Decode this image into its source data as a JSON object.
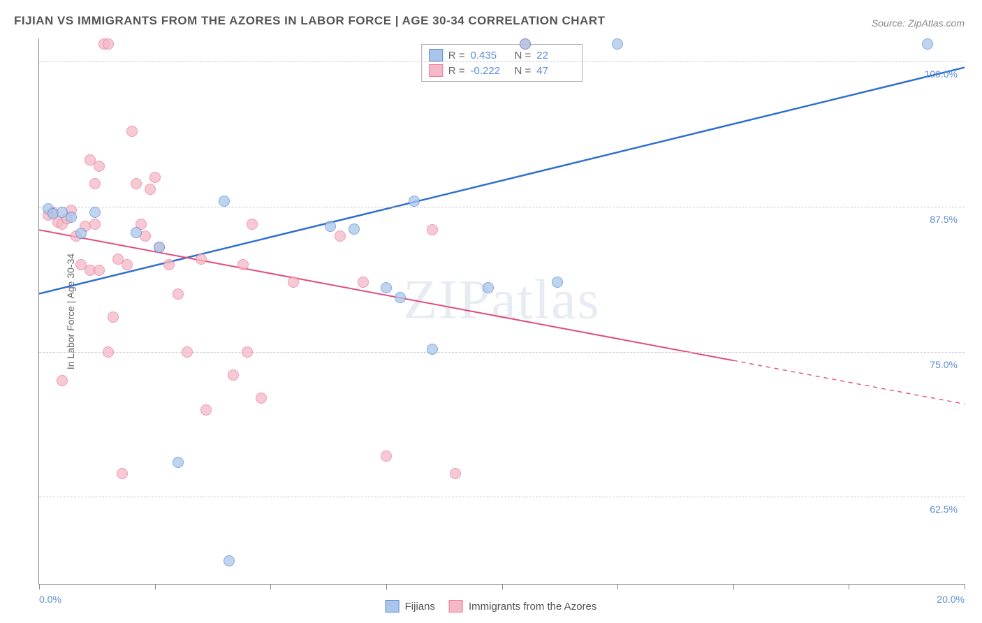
{
  "title": "FIJIAN VS IMMIGRANTS FROM THE AZORES IN LABOR FORCE | AGE 30-34 CORRELATION CHART",
  "source": "Source: ZipAtlas.com",
  "ylabel": "In Labor Force | Age 30-34",
  "watermark": "ZIPatlas",
  "chart": {
    "type": "scatter",
    "xlim": [
      0,
      20
    ],
    "ylim": [
      55,
      102
    ],
    "xticks": [
      0,
      2.5,
      5,
      7.5,
      10,
      12.5,
      15,
      17.5,
      20
    ],
    "xtick_labels": {
      "0": "0.0%",
      "20": "20.0%"
    },
    "yticks": [
      62.5,
      75.0,
      87.5,
      100.0
    ],
    "ytick_labels": [
      "62.5%",
      "75.0%",
      "87.5%",
      "100.0%"
    ],
    "grid_color": "#cccccc",
    "axis_color": "#888888",
    "background": "#ffffff",
    "marker_radius": 8,
    "marker_opacity": 0.75
  },
  "series": [
    {
      "name": "Fijians",
      "label": "Fijians",
      "fill": "#a9c6ea",
      "stroke": "#5b8dd6",
      "line_color": "#2f6fd0",
      "line_width": 2.5,
      "R": "0.435",
      "N": "22",
      "trend": {
        "x1": 0,
        "y1": 80,
        "x2": 20,
        "y2": 99.5,
        "dash_from_x": null
      },
      "points": [
        [
          0.2,
          87.3
        ],
        [
          0.3,
          86.9
        ],
        [
          0.5,
          87.0
        ],
        [
          0.7,
          86.6
        ],
        [
          0.9,
          85.2
        ],
        [
          1.2,
          87.0
        ],
        [
          2.1,
          85.3
        ],
        [
          2.6,
          84.0
        ],
        [
          3.0,
          65.5
        ],
        [
          4.0,
          88.0
        ],
        [
          4.1,
          57.0
        ],
        [
          6.3,
          85.8
        ],
        [
          6.8,
          85.6
        ],
        [
          7.5,
          80.5
        ],
        [
          7.8,
          79.7
        ],
        [
          8.1,
          88.0
        ],
        [
          8.5,
          75.2
        ],
        [
          9.7,
          80.5
        ],
        [
          10.5,
          101.5
        ],
        [
          11.2,
          81.0
        ],
        [
          12.5,
          101.5
        ],
        [
          19.2,
          101.5
        ]
      ]
    },
    {
      "name": "Immigrants from the Azores",
      "label": "Immigrants from the Azores",
      "fill": "#f4b8c6",
      "stroke": "#e97a9a",
      "line_color": "#e14d78",
      "line_width": 2,
      "R": "-0.222",
      "N": "47",
      "trend": {
        "x1": 0,
        "y1": 85.5,
        "x2": 20,
        "y2": 70.5,
        "dash_from_x": 15
      },
      "points": [
        [
          0.2,
          86.8
        ],
        [
          0.3,
          87.0
        ],
        [
          0.4,
          86.2
        ],
        [
          0.5,
          86.0
        ],
        [
          0.5,
          72.5
        ],
        [
          0.6,
          86.5
        ],
        [
          0.7,
          87.2
        ],
        [
          0.8,
          85.0
        ],
        [
          0.9,
          82.5
        ],
        [
          1.0,
          85.8
        ],
        [
          1.1,
          82.0
        ],
        [
          1.1,
          91.5
        ],
        [
          1.2,
          89.5
        ],
        [
          1.2,
          86.0
        ],
        [
          1.3,
          91.0
        ],
        [
          1.3,
          82.0
        ],
        [
          1.4,
          101.5
        ],
        [
          1.5,
          101.5
        ],
        [
          1.5,
          75.0
        ],
        [
          1.6,
          78.0
        ],
        [
          1.7,
          83.0
        ],
        [
          1.8,
          64.5
        ],
        [
          1.9,
          82.5
        ],
        [
          2.0,
          94.0
        ],
        [
          2.1,
          89.5
        ],
        [
          2.2,
          86.0
        ],
        [
          2.3,
          85.0
        ],
        [
          2.4,
          89.0
        ],
        [
          2.5,
          90.0
        ],
        [
          2.6,
          84.0
        ],
        [
          2.8,
          82.5
        ],
        [
          3.0,
          80.0
        ],
        [
          3.2,
          75.0
        ],
        [
          3.5,
          83.0
        ],
        [
          3.6,
          70.0
        ],
        [
          4.2,
          73.0
        ],
        [
          4.4,
          82.5
        ],
        [
          4.5,
          75.0
        ],
        [
          4.6,
          86.0
        ],
        [
          4.8,
          71.0
        ],
        [
          5.5,
          81.0
        ],
        [
          6.5,
          85.0
        ],
        [
          7.0,
          81.0
        ],
        [
          7.5,
          66.0
        ],
        [
          8.5,
          85.5
        ],
        [
          9.0,
          64.5
        ],
        [
          10.5,
          101.5
        ]
      ]
    }
  ],
  "legend": {
    "stats_labels": {
      "R": "R =",
      "N": "N ="
    }
  }
}
